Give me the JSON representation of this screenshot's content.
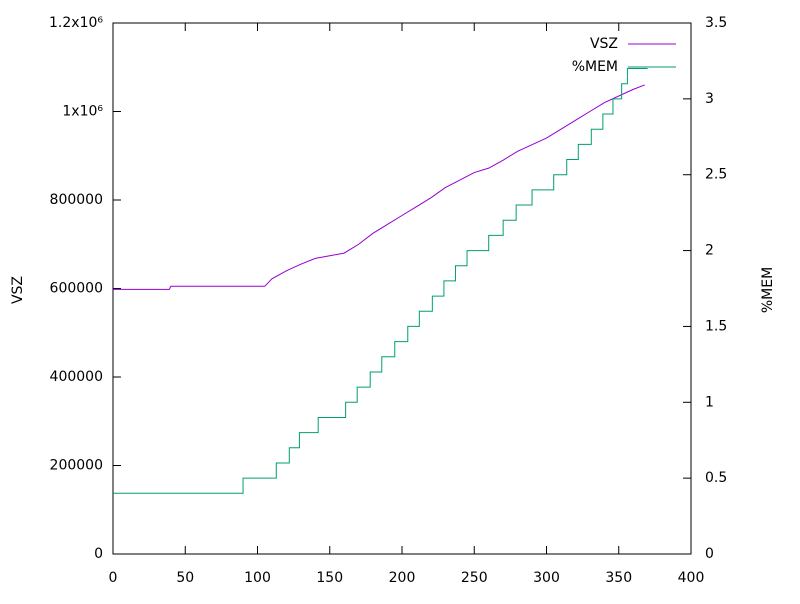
{
  "chart_data": {
    "type": "line",
    "ylabel": "VSZ",
    "y2label": "%MEM",
    "xlim": [
      0,
      400
    ],
    "xticks": [
      0,
      50,
      100,
      150,
      200,
      250,
      300,
      350,
      400
    ],
    "ylim": [
      0,
      1200000
    ],
    "yticks": [
      0,
      200000,
      400000,
      600000,
      800000,
      {
        "value": 1000000,
        "label": "1x10⁶"
      },
      {
        "value": 1200000,
        "label": "1.2x10⁶"
      }
    ],
    "y2lim": [
      0,
      3.5
    ],
    "y2ticks": [
      0,
      0.5,
      1,
      1.5,
      2,
      2.5,
      3,
      3.5
    ],
    "legend": "top-right",
    "series": [
      {
        "name": "VSZ",
        "color": "#9400d3",
        "x": [
          0,
          39,
          40,
          105,
          110,
          120,
          130,
          140,
          150,
          160,
          170,
          180,
          190,
          200,
          210,
          220,
          230,
          240,
          250,
          260,
          270,
          280,
          290,
          300,
          310,
          320,
          330,
          340,
          350,
          360,
          368
        ],
        "values": [
          598000,
          598000,
          605000,
          605000,
          622000,
          640000,
          655000,
          668000,
          674000,
          680000,
          700000,
          725000,
          745000,
          765000,
          785000,
          805000,
          828000,
          845000,
          862000,
          872000,
          890000,
          910000,
          925000,
          940000,
          960000,
          980000,
          1000000,
          1020000,
          1035000,
          1050000,
          1060000
        ]
      },
      {
        "name": "%MEM",
        "color": "#009e73",
        "axis": "y2",
        "x": [
          0,
          90,
          90,
          113,
          113,
          122,
          122,
          129,
          129,
          142,
          142,
          161,
          161,
          169,
          169,
          178,
          178,
          186,
          186,
          195,
          195,
          204,
          204,
          212,
          212,
          221,
          221,
          229,
          229,
          237,
          237,
          245,
          245,
          260,
          260,
          270,
          270,
          279,
          279,
          290,
          290,
          305,
          305,
          314,
          314,
          322,
          322,
          331,
          331,
          339,
          339,
          346,
          346,
          352,
          352,
          356,
          356,
          370
        ],
        "values": [
          0.4,
          0.4,
          0.5,
          0.5,
          0.6,
          0.6,
          0.7,
          0.7,
          0.8,
          0.8,
          0.9,
          0.9,
          1.0,
          1.0,
          1.1,
          1.1,
          1.2,
          1.2,
          1.3,
          1.3,
          1.4,
          1.4,
          1.5,
          1.5,
          1.6,
          1.6,
          1.7,
          1.7,
          1.8,
          1.8,
          1.9,
          1.9,
          2.0,
          2.0,
          2.1,
          2.1,
          2.2,
          2.2,
          2.3,
          2.3,
          2.4,
          2.4,
          2.5,
          2.5,
          2.6,
          2.6,
          2.7,
          2.7,
          2.8,
          2.8,
          2.9,
          2.9,
          3.0,
          3.0,
          3.1,
          3.1,
          3.2,
          3.2
        ]
      }
    ]
  }
}
